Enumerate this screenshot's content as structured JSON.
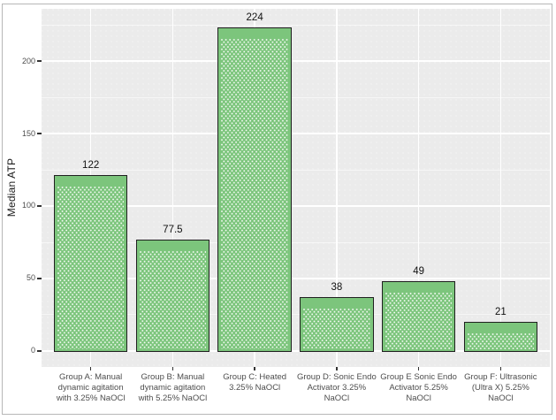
{
  "chart_data": {
    "type": "bar",
    "title": "",
    "ylabel": "Median ATP",
    "xlabel": "",
    "categories": [
      "Group A: Manual\ndynamic agitation\nwith 3.25% NaOCl",
      "Group B: Manual\ndynamic agitation\nwith 5.25% NaOCl",
      "Group C: Heated\n3.25% NaOCl",
      "Group D: Sonic Endo\nActivator 3.25%\nNaOCl",
      "Group E Sonic Endo\nActivator 5.25%\nNaOCl",
      "Group F: Ultrasonic\n(Ultra X) 5.25%\nNaOCl"
    ],
    "values": [
      122,
      77.5,
      224,
      38,
      49,
      21
    ],
    "bar_labels": [
      "122",
      "77.5",
      "224",
      "38",
      "49",
      "21"
    ],
    "yticks": [
      0,
      50,
      100,
      150,
      200
    ],
    "yticks_minor": [
      25,
      75,
      125,
      175,
      225
    ],
    "ylim": [
      -11,
      236
    ],
    "legend": "none",
    "grid": "major-and-minor-horizontal, major-vertical-at-category-centers",
    "colors": {
      "bar_fill": "#7CC57C",
      "bar_pattern_dots": "#FFFFFF",
      "bar_border": "#1F1F1F",
      "panel_bg": "#EBEBEB",
      "grid_major": "#FFFFFF",
      "grid_minor": "#FFFFFF",
      "axis_text": "#4D4D4D",
      "value_label_text": "#111111",
      "tick_mark": "#333333",
      "figure_border": "#B7B7B7"
    }
  }
}
